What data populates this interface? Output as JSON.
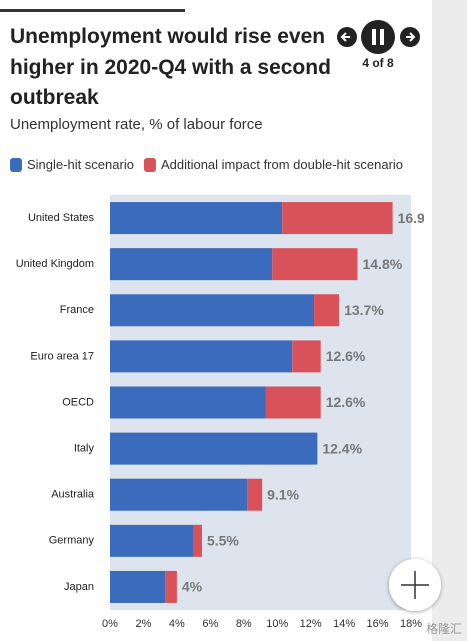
{
  "header": {
    "nav_counter": "4 of 8",
    "watermark": "格隆汇"
  },
  "chart_data": {
    "type": "stacked-bar",
    "title": "Unemployment would rise even higher in 2020-Q4 with a second outbreak",
    "subtitle": "Unemployment rate, % of labour force",
    "categories": [
      "United States",
      "United Kingdom",
      "France",
      "Euro area 17",
      "OECD",
      "Italy",
      "Australia",
      "Germany",
      "Japan"
    ],
    "series": [
      {
        "name": "Single-hit scenario",
        "color": "#3a6bbd",
        "values": [
          10.3,
          9.7,
          12.2,
          10.9,
          9.3,
          12.4,
          8.2,
          5.0,
          3.3
        ]
      },
      {
        "name": "Additional impact from double-hit scenario",
        "color": "#d9525a",
        "values": [
          6.6,
          5.1,
          1.5,
          1.7,
          3.3,
          0,
          0.9,
          0.5,
          0.7
        ]
      }
    ],
    "totals": [
      16.9,
      14.8,
      13.7,
      12.6,
      12.6,
      12.4,
      9.1,
      5.5,
      4
    ],
    "total_labels": [
      "16.9%",
      "14.8%",
      "13.7%",
      "12.6%",
      "12.6%",
      "12.4%",
      "9.1%",
      "5.5%",
      "4%"
    ],
    "xlim": [
      0,
      18
    ],
    "xticks": [
      {
        "value": 0,
        "label": "0%"
      },
      {
        "value": 2,
        "label": "2%"
      },
      {
        "value": 4,
        "label": "4%"
      },
      {
        "value": 6,
        "label": "6%"
      },
      {
        "value": 8,
        "label": "8%"
      },
      {
        "value": 10,
        "label": "10%"
      },
      {
        "value": 12,
        "label": "12%"
      },
      {
        "value": 14,
        "label": "14%"
      },
      {
        "value": 16,
        "label": "16%"
      },
      {
        "value": 18,
        "label": "18%"
      }
    ]
  }
}
